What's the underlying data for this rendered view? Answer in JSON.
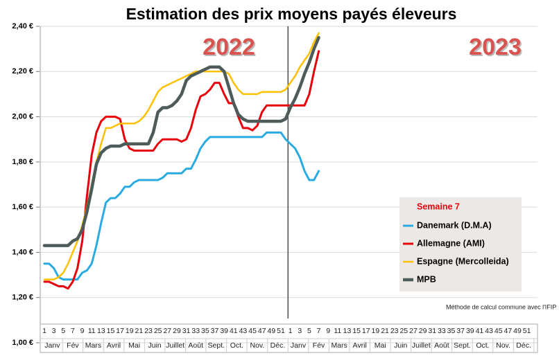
{
  "chart_data": {
    "type": "line",
    "title": "Estimation des prix moyens payés éleveurs",
    "annotations": [
      "2022",
      "2023"
    ],
    "note": "Méthode de calcul commune avec l'IFIP",
    "legend_title": "Semaine 7",
    "categories": [
      "1",
      null,
      "3",
      null,
      "5",
      null,
      "7",
      null,
      "9",
      null,
      "11",
      null,
      "13",
      null,
      "15",
      null,
      "17",
      null,
      "19",
      null,
      "21",
      null,
      "23",
      null,
      "25",
      null,
      "27",
      null,
      "29",
      null,
      "31",
      null,
      "33",
      null,
      "35",
      null,
      "37",
      null,
      "39",
      null,
      "41",
      null,
      "43",
      null,
      "45",
      null,
      "47",
      null,
      "49",
      null,
      "51",
      null,
      "1",
      null,
      "3",
      null,
      "5",
      null,
      "7",
      null,
      "9",
      null,
      "11",
      null,
      "13",
      null,
      "15",
      null,
      "17",
      null,
      "19",
      null,
      "21",
      null,
      "23",
      null,
      "25",
      null,
      "27",
      null,
      "29",
      null,
      "31",
      null,
      "33",
      null,
      "35",
      null,
      "37",
      null,
      "39",
      null,
      "41",
      null,
      "43",
      null,
      "45",
      null,
      "47",
      null,
      "49",
      null,
      "51",
      null
    ],
    "month_labels": [
      "Janv",
      "Fév",
      "Mars",
      "Avril",
      "Mai",
      "Juin",
      "Juillet",
      "Août",
      "Sept.",
      "Oct.",
      "Nov.",
      "Déc.",
      "Janv",
      "Fév",
      "Mars",
      "Avril",
      "Mai",
      "Juin",
      "Juillet",
      "Août",
      "Sept.",
      "Oct.",
      "Nov.",
      "Déc."
    ],
    "ylim": [
      1.0,
      2.4
    ],
    "yticks": [
      {
        "value": 1.0,
        "label": "1,00 €"
      },
      {
        "value": 1.2,
        "label": "1,20 €"
      },
      {
        "value": 1.4,
        "label": "1,40 €"
      },
      {
        "value": 1.6,
        "label": "1,60 €"
      },
      {
        "value": 1.8,
        "label": "1,80 €"
      },
      {
        "value": 2.0,
        "label": "2,00 €"
      },
      {
        "value": 2.2,
        "label": "2,20 €"
      },
      {
        "value": 2.4,
        "label": "2,40 €"
      }
    ],
    "grid": true,
    "legend": "lower right",
    "series": [
      {
        "name": "Danemark (D.M.A)",
        "color": "#29abe2",
        "width": 3,
        "values": [
          1.35,
          1.35,
          1.33,
          1.29,
          1.28,
          1.28,
          1.28,
          1.28,
          1.31,
          1.32,
          1.35,
          1.43,
          1.53,
          1.62,
          1.64,
          1.64,
          1.66,
          1.69,
          1.69,
          1.71,
          1.72,
          1.72,
          1.72,
          1.72,
          1.72,
          1.73,
          1.75,
          1.75,
          1.75,
          1.75,
          1.77,
          1.77,
          1.81,
          1.86,
          1.89,
          1.91,
          1.91,
          1.91,
          1.91,
          1.91,
          1.91,
          1.91,
          1.91,
          1.91,
          1.91,
          1.91,
          1.91,
          1.93,
          1.93,
          1.93,
          1.93,
          1.9,
          1.88,
          1.86,
          1.82,
          1.76,
          1.72,
          1.72,
          1.76,
          null,
          null,
          null,
          null,
          null,
          null,
          null,
          null,
          null,
          null,
          null,
          null,
          null,
          null,
          null,
          null,
          null,
          null,
          null,
          null,
          null,
          null,
          null,
          null,
          null,
          null,
          null,
          null,
          null,
          null,
          null,
          null,
          null,
          null,
          null,
          null,
          null,
          null,
          null,
          null,
          null,
          null,
          null,
          null,
          null
        ]
      },
      {
        "name": "Allemagne (AMI)",
        "color": "#e8000b",
        "width": 3,
        "values": [
          1.27,
          1.27,
          1.26,
          1.25,
          1.25,
          1.24,
          1.27,
          1.33,
          1.45,
          1.65,
          1.83,
          1.93,
          1.98,
          2.0,
          2.0,
          2.0,
          1.99,
          1.9,
          1.86,
          1.85,
          1.85,
          1.85,
          1.85,
          1.85,
          1.88,
          1.9,
          1.9,
          1.9,
          1.9,
          1.89,
          1.9,
          1.95,
          2.03,
          2.09,
          2.1,
          2.12,
          2.15,
          2.15,
          2.1,
          2.06,
          2.06,
          2.0,
          1.95,
          1.95,
          1.94,
          1.96,
          2.02,
          2.05,
          2.05,
          2.05,
          2.05,
          2.05,
          2.05,
          2.05,
          2.05,
          2.05,
          2.1,
          2.2,
          2.29,
          null,
          null,
          null,
          null,
          null,
          null,
          null,
          null,
          null,
          null,
          null,
          null,
          null,
          null,
          null,
          null,
          null,
          null,
          null,
          null,
          null,
          null,
          null,
          null,
          null,
          null,
          null,
          null,
          null,
          null,
          null,
          null,
          null,
          null,
          null,
          null,
          null,
          null,
          null,
          null,
          null,
          null,
          null,
          null,
          null
        ]
      },
      {
        "name": "Espagne (Mercolleida)",
        "color": "#ffc000",
        "width": 2.5,
        "values": [
          1.28,
          1.28,
          1.28,
          1.29,
          1.31,
          1.35,
          1.4,
          1.45,
          1.52,
          1.6,
          1.7,
          1.8,
          1.88,
          1.95,
          1.95,
          1.96,
          1.97,
          1.97,
          1.97,
          1.97,
          1.98,
          2.0,
          2.03,
          2.07,
          2.11,
          2.13,
          2.14,
          2.15,
          2.16,
          2.17,
          2.18,
          2.19,
          2.2,
          2.2,
          2.2,
          2.2,
          2.2,
          2.2,
          2.2,
          2.19,
          2.15,
          2.12,
          2.1,
          2.1,
          2.1,
          2.1,
          2.11,
          2.11,
          2.11,
          2.11,
          2.11,
          2.12,
          2.15,
          2.18,
          2.22,
          2.25,
          2.28,
          2.33,
          2.37,
          null,
          null,
          null,
          null,
          null,
          null,
          null,
          null,
          null,
          null,
          null,
          null,
          null,
          null,
          null,
          null,
          null,
          null,
          null,
          null,
          null,
          null,
          null,
          null,
          null,
          null,
          null,
          null,
          null,
          null,
          null,
          null,
          null,
          null,
          null,
          null,
          null,
          null,
          null,
          null,
          null,
          null,
          null,
          null,
          null
        ]
      },
      {
        "name": "MPB",
        "color": "#4d5b5b",
        "width": 4.5,
        "values": [
          1.43,
          1.43,
          1.43,
          1.43,
          1.43,
          1.43,
          1.45,
          1.46,
          1.5,
          1.58,
          1.68,
          1.79,
          1.84,
          1.86,
          1.87,
          1.87,
          1.87,
          1.88,
          1.88,
          1.88,
          1.88,
          1.88,
          1.88,
          1.93,
          2.02,
          2.04,
          2.04,
          2.05,
          2.07,
          2.1,
          2.16,
          2.18,
          2.19,
          2.2,
          2.21,
          2.22,
          2.22,
          2.22,
          2.2,
          2.13,
          2.06,
          2.01,
          1.99,
          1.98,
          1.98,
          1.98,
          1.98,
          1.98,
          1.98,
          1.98,
          1.98,
          1.99,
          2.04,
          2.08,
          2.13,
          2.19,
          2.24,
          2.3,
          2.35,
          null,
          null,
          null,
          null,
          null,
          null,
          null,
          null,
          null,
          null,
          null,
          null,
          null,
          null,
          null,
          null,
          null,
          null,
          null,
          null,
          null,
          null,
          null,
          null,
          null,
          null,
          null,
          null,
          null,
          null,
          null,
          null,
          null,
          null,
          null,
          null,
          null,
          null,
          null,
          null,
          null,
          null,
          null,
          null,
          null
        ]
      }
    ]
  }
}
